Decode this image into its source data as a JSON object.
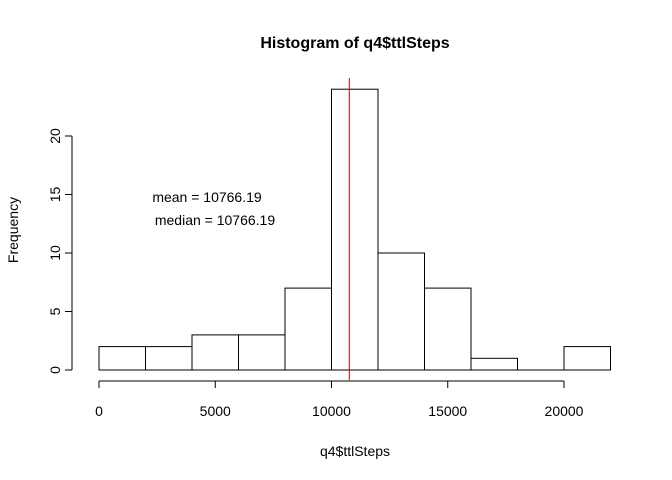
{
  "chart_data": {
    "type": "bar",
    "title": "Histogram of q4$ttlSteps",
    "xlabel": "q4$ttlSteps",
    "ylabel": "Frequency",
    "bins": [
      {
        "start": 0,
        "end": 2000,
        "count": 2
      },
      {
        "start": 2000,
        "end": 4000,
        "count": 2
      },
      {
        "start": 4000,
        "end": 6000,
        "count": 3
      },
      {
        "start": 6000,
        "end": 8000,
        "count": 3
      },
      {
        "start": 8000,
        "end": 10000,
        "count": 7
      },
      {
        "start": 10000,
        "end": 12000,
        "count": 24
      },
      {
        "start": 12000,
        "end": 14000,
        "count": 10
      },
      {
        "start": 14000,
        "end": 16000,
        "count": 7
      },
      {
        "start": 16000,
        "end": 18000,
        "count": 1
      },
      {
        "start": 18000,
        "end": 20000,
        "count": 0
      },
      {
        "start": 20000,
        "end": 22000,
        "count": 2
      }
    ],
    "xlim": [
      0,
      22000
    ],
    "ylim": [
      0,
      25
    ],
    "xticks": [
      0,
      5000,
      10000,
      15000,
      20000
    ],
    "yticks": [
      0,
      5,
      10,
      15,
      20
    ],
    "xtick_labels": [
      "0",
      "5000",
      "10000",
      "15000",
      "20000"
    ],
    "ytick_labels": [
      "0",
      "5",
      "10",
      "15",
      "20"
    ],
    "vline": {
      "x": 10766.19,
      "color": "#cc0000"
    },
    "annotations": [
      {
        "text": "mean =  10766.19"
      },
      {
        "text": "median =  10766.19"
      }
    ],
    "grid": false,
    "bar_fill": "#ffffff",
    "bar_stroke": "#000000"
  }
}
